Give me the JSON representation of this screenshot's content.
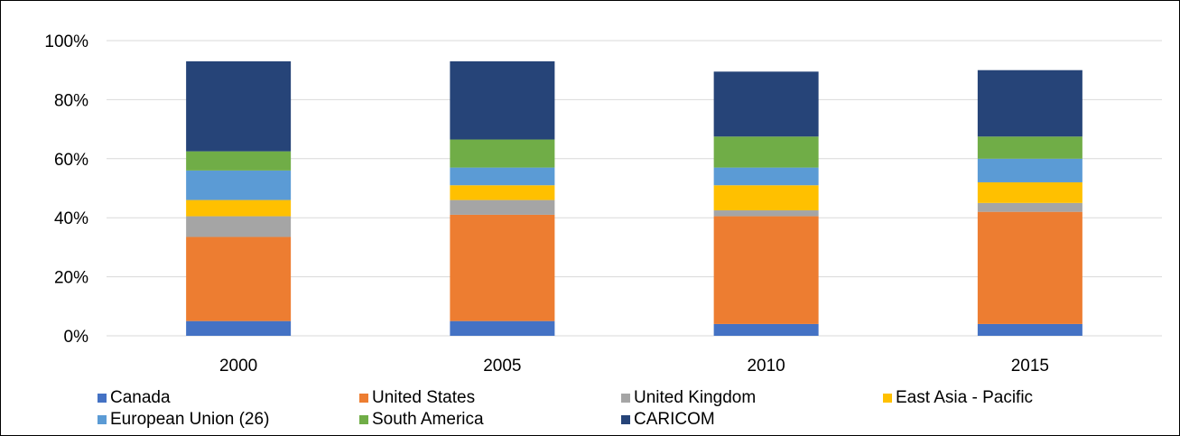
{
  "chart_data": {
    "type": "bar",
    "stacked": true,
    "categories": [
      "2000",
      "2005",
      "2010",
      "2015"
    ],
    "series": [
      {
        "name": "Canada",
        "color": "#4472C4",
        "values": [
          5,
          5,
          4,
          4
        ]
      },
      {
        "name": "United States",
        "color": "#ED7D31",
        "values": [
          28.5,
          36,
          36.5,
          38
        ]
      },
      {
        "name": "United Kingdom",
        "color": "#A5A5A5",
        "values": [
          7,
          5,
          2,
          3
        ]
      },
      {
        "name": "East Asia - Pacific",
        "color": "#FFC000",
        "values": [
          5.5,
          5,
          8.5,
          7
        ]
      },
      {
        "name": "European Union (26)",
        "color": "#5B9BD5",
        "values": [
          10,
          6,
          6,
          8
        ]
      },
      {
        "name": "South America",
        "color": "#70AD47",
        "values": [
          6.5,
          9.5,
          10.5,
          7.5
        ]
      },
      {
        "name": "CARICOM",
        "color": "#264478",
        "values": [
          30.5,
          26.5,
          22,
          22.5
        ]
      }
    ],
    "ylim": [
      0,
      100
    ],
    "yticks": [
      0,
      20,
      40,
      60,
      80,
      100
    ],
    "ytick_labels": [
      "0%",
      "20%",
      "40%",
      "60%",
      "80%",
      "100%"
    ],
    "title": "",
    "xlabel": "",
    "ylabel": "",
    "grid": true,
    "gridline_color": "#D9D9D9",
    "legend_position": "bottom"
  }
}
